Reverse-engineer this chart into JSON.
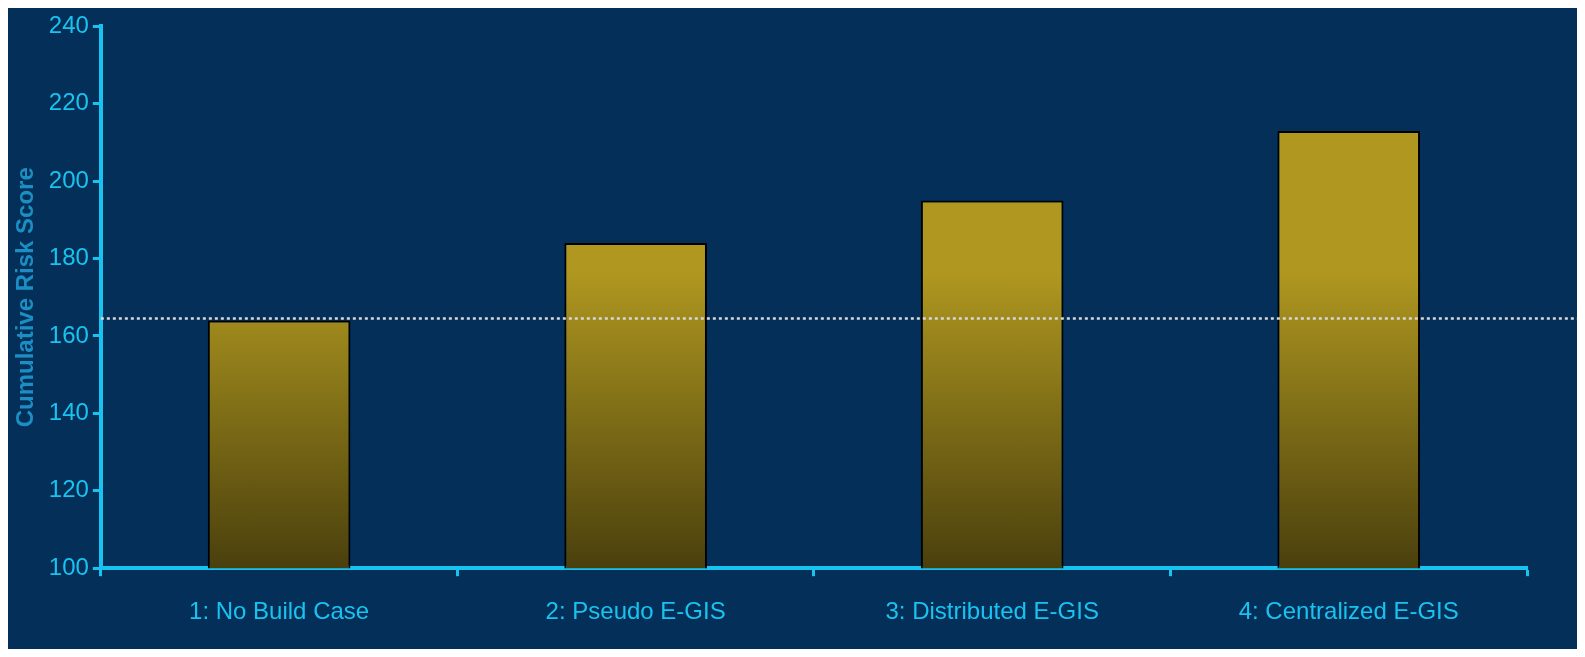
{
  "chart_data": {
    "type": "bar",
    "ylabel": "Cumulative Risk Score",
    "categories": [
      "1: No Build Case",
      "2: Pseudo E-GIS",
      "3: Distributed E-GIS",
      "4: Centralized E-GIS"
    ],
    "values": [
      164,
      184,
      195,
      213
    ],
    "color": "#b09820",
    "ylim": [
      100,
      240
    ],
    "yticks": [
      100,
      120,
      140,
      160,
      180,
      200,
      220,
      240
    ],
    "grid": false,
    "legend": false,
    "ref_lines": [
      {
        "axis": "y",
        "value": 164.5,
        "color": "#d8d8d8",
        "line_style": "dotted"
      }
    ]
  }
}
